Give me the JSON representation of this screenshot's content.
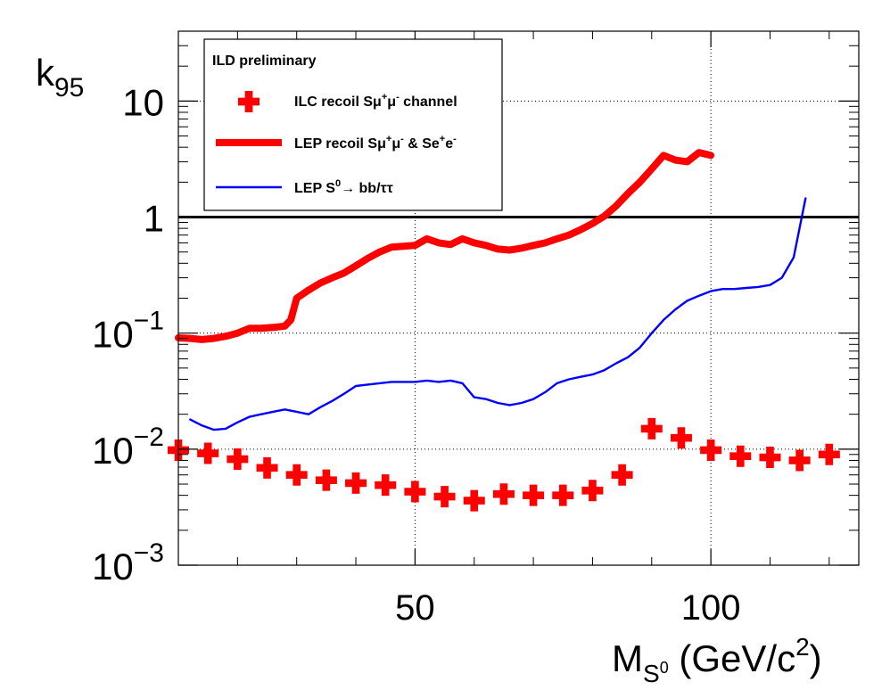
{
  "chart_data": {
    "type": "line",
    "xlabel": "M",
    "xlabel_sub": "S",
    "xlabel_subsup": "0",
    "xlabel_units": " (GeV/c",
    "xlabel_units_sup": "2",
    "xlabel_units_close": ")",
    "ylabel": "k",
    "ylabel_sub": "95",
    "xlim": [
      10,
      125
    ],
    "ylim": [
      0.001,
      40
    ],
    "yscale": "log",
    "grid": "dotted",
    "x_ticks": [
      {
        "value": 50,
        "label": "50"
      },
      {
        "value": 100,
        "label": "100"
      }
    ],
    "y_ticks": [
      {
        "value": 0.001,
        "base": "10",
        "exp": "−3"
      },
      {
        "value": 0.01,
        "base": "10",
        "exp": "−2"
      },
      {
        "value": 0.1,
        "base": "10",
        "exp": "−1"
      },
      {
        "value": 1,
        "base": "1",
        "exp": ""
      },
      {
        "value": 10,
        "base": "10",
        "exp": ""
      }
    ],
    "reference_line": {
      "y": 1,
      "color": "#000000"
    },
    "legend": {
      "position": "top-left",
      "title": "ILD preliminary",
      "entries": [
        {
          "text": "ILC recoil S",
          "mu1": "μ",
          "sup1": "+",
          "mu2": "μ",
          "sup2": "-",
          "tail": " channel",
          "style": "cross",
          "color": "#ff0000"
        },
        {
          "text": "LEP recoil S",
          "mu1": "μ",
          "sup1": "+",
          "mu2": "μ",
          "sup2": "-",
          "mid": " & Se",
          "sup3": "+",
          "e2": "e",
          "sup4": "-",
          "style": "thick-line",
          "color": "#ff0000"
        },
        {
          "text": "LEP S",
          "sup1": "0",
          "arrow": "→ bb/ττ",
          "style": "thin-line",
          "color": "#0000ff"
        }
      ]
    },
    "series": [
      {
        "name": "ILC recoil Sμ+μ- channel",
        "style": "cross",
        "color": "#ff0000",
        "x": [
          10,
          15,
          20,
          25,
          30,
          35,
          40,
          45,
          50,
          55,
          60,
          65,
          70,
          75,
          80,
          85,
          90,
          95,
          100,
          105,
          110,
          115,
          120
        ],
        "y": [
          0.0098,
          0.0092,
          0.0082,
          0.0069,
          0.006,
          0.0054,
          0.0051,
          0.0049,
          0.0043,
          0.0039,
          0.0036,
          0.0041,
          0.004,
          0.004,
          0.0044,
          0.006,
          0.015,
          0.0125,
          0.0098,
          0.0087,
          0.0085,
          0.008,
          0.009
        ]
      },
      {
        "name": "LEP recoil Sμ+μ- & Se+e-",
        "style": "thick-line",
        "color": "#ff0000",
        "x": [
          10,
          12,
          14,
          16,
          18,
          20,
          22,
          24,
          26,
          28,
          29,
          30,
          32,
          34,
          36,
          38,
          40,
          42,
          44,
          46,
          48,
          50,
          52,
          54,
          56,
          58,
          60,
          62,
          64,
          66,
          68,
          70,
          72,
          74,
          76,
          78,
          80,
          82,
          84,
          86,
          88,
          90,
          92,
          94,
          96,
          98,
          100
        ],
        "y": [
          0.091,
          0.09,
          0.088,
          0.09,
          0.094,
          0.1,
          0.11,
          0.11,
          0.112,
          0.115,
          0.13,
          0.2,
          0.235,
          0.27,
          0.3,
          0.33,
          0.38,
          0.44,
          0.5,
          0.55,
          0.56,
          0.57,
          0.65,
          0.6,
          0.58,
          0.65,
          0.6,
          0.57,
          0.53,
          0.52,
          0.54,
          0.57,
          0.6,
          0.65,
          0.7,
          0.78,
          0.88,
          1.02,
          1.25,
          1.6,
          2.0,
          2.6,
          3.4,
          3.1,
          3.0,
          3.6,
          3.4
        ]
      },
      {
        "name": "LEP S0→ bb/ττ",
        "style": "thin-line",
        "color": "#0000ff",
        "x": [
          12,
          14,
          16,
          18,
          20,
          22,
          24,
          26,
          28,
          30,
          32,
          34,
          36,
          38,
          40,
          42,
          44,
          46,
          48,
          50,
          52,
          54,
          56,
          58,
          60,
          62,
          64,
          66,
          68,
          70,
          72,
          74,
          76,
          78,
          80,
          82,
          84,
          86,
          88,
          90,
          92,
          94,
          96,
          98,
          100,
          102,
          104,
          106,
          108,
          110,
          112,
          114,
          116
        ],
        "y": [
          0.018,
          0.016,
          0.0147,
          0.015,
          0.017,
          0.019,
          0.02,
          0.021,
          0.022,
          0.021,
          0.02,
          0.023,
          0.026,
          0.03,
          0.035,
          0.036,
          0.037,
          0.038,
          0.038,
          0.038,
          0.039,
          0.038,
          0.039,
          0.037,
          0.028,
          0.027,
          0.025,
          0.024,
          0.025,
          0.027,
          0.031,
          0.037,
          0.04,
          0.042,
          0.044,
          0.048,
          0.055,
          0.062,
          0.075,
          0.1,
          0.13,
          0.16,
          0.19,
          0.21,
          0.23,
          0.24,
          0.24,
          0.245,
          0.25,
          0.26,
          0.3,
          0.45,
          1.45
        ]
      }
    ]
  }
}
